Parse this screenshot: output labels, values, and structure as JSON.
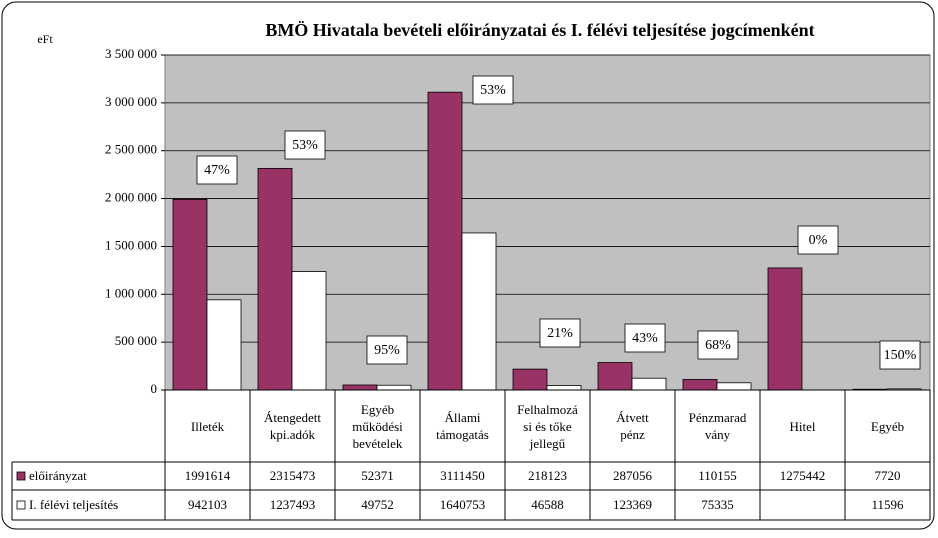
{
  "chart_data": {
    "type": "bar",
    "title": "BMÖ Hivatala bevételi előirányzatai és I. félévi teljesítése jogcímenként",
    "y_label": "eFt",
    "categories": [
      "Illeték",
      "Átengedett\nkpi.adók",
      "Egyéb\nműködési\nbevételek",
      "Állami\ntámogatás",
      "Felhalmozá\nsi és tőke\njellegű",
      "Átvett\npénz",
      "Pénzmarad\nvány",
      "Hitel",
      "Egyéb"
    ],
    "series": [
      {
        "name": "előirányzat",
        "color": "#993366",
        "values": [
          1991614,
          2315473,
          52371,
          3111450,
          218123,
          287056,
          110155,
          1275442,
          7720
        ]
      },
      {
        "name": "I. félévi teljesítés",
        "color": "#ffffff",
        "values": [
          942103,
          1237493,
          49752,
          1640753,
          46588,
          123369,
          75335,
          null,
          11596
        ]
      }
    ],
    "annotations": [
      "47%",
      "53%",
      "95%",
      "53%",
      "21%",
      "43%",
      "68%",
      "0%",
      "150%"
    ],
    "ylim": [
      0,
      3500000
    ],
    "yticks": [
      0,
      {
        "value": 500000,
        "label": "500 000"
      },
      {
        "value": 1000000,
        "label": "1 000 000"
      },
      {
        "value": 1500000,
        "label": "1 500 000"
      },
      {
        "value": 2000000,
        "label": "2 000 000"
      },
      {
        "value": 2500000,
        "label": "2 500 000"
      },
      {
        "value": 3000000,
        "label": "3 000 000"
      },
      {
        "value": 3500000,
        "label": "3 500 000"
      }
    ],
    "grid": true
  }
}
